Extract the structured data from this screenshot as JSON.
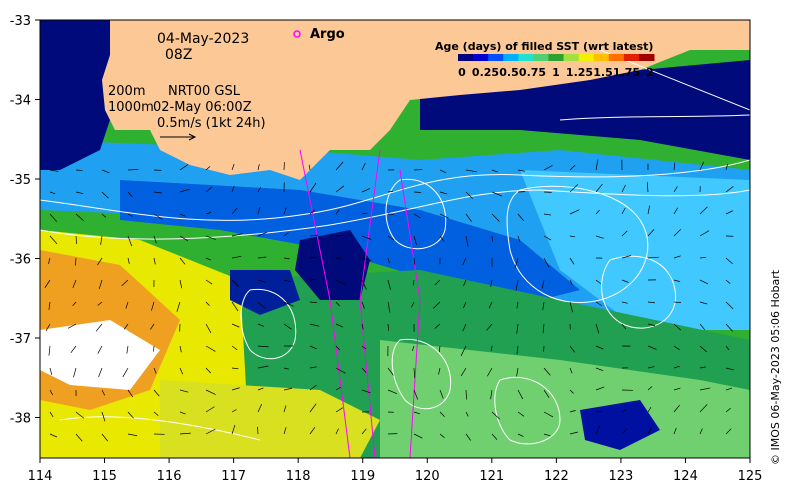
{
  "annotations": {
    "date": "04-May-2023",
    "hour": "08Z",
    "argo_label": "Argo",
    "contour_200": "200m",
    "contour_1000": "1000m",
    "altimetry_product": "NRT00 GSL",
    "altimetry_time": "02-May 06:00Z",
    "vector_scale": "0.5m/s (1kt 24h)"
  },
  "colorbar": {
    "title": "Age (days) of filled SST (wrt latest)",
    "ticks": [
      "0",
      "0.25",
      "0.5",
      "0.75",
      "1",
      "1.25",
      "1.5",
      "1.75",
      "2"
    ],
    "colors": [
      "#00007f",
      "#0000d0",
      "#0050ff",
      "#00b0ff",
      "#20e0d0",
      "#50d070",
      "#30a030",
      "#a0e040",
      "#f0f000",
      "#ffc000",
      "#ff7000",
      "#e02000",
      "#a00000"
    ]
  },
  "credit": "© IMOS 06-May-2023 05:06 Hobart",
  "axes": {
    "x_ticks": [
      "114",
      "115",
      "116",
      "117",
      "118",
      "119",
      "120",
      "121",
      "122",
      "123",
      "124",
      "125"
    ],
    "y_ticks": [
      "-33",
      "-34",
      "-35",
      "-36",
      "-37",
      "-38"
    ]
  },
  "colors": {
    "land": "#fcc896",
    "deep_blue": "#000a7a",
    "argo_marker": "#ff00ff"
  }
}
